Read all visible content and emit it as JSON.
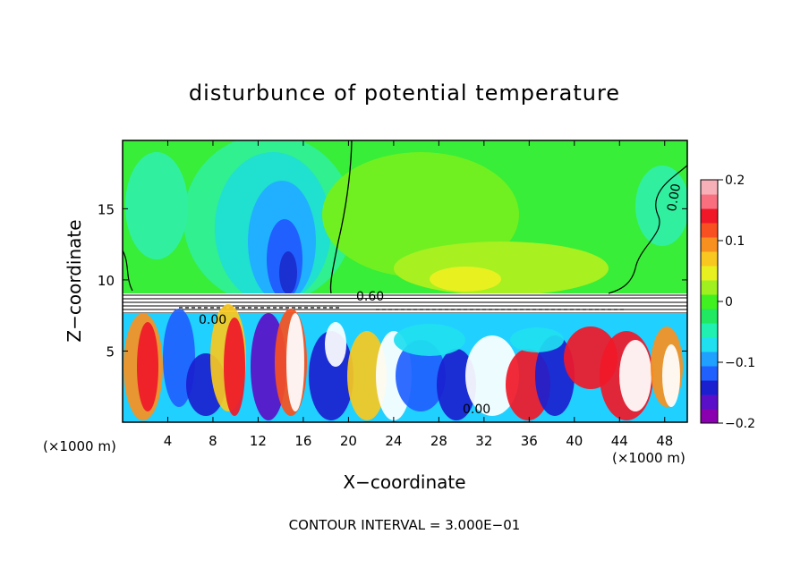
{
  "chart_data": {
    "type": "heatmap",
    "title": "disturbunce of potential temperature",
    "xlabel": "X−coordinate",
    "ylabel": "Z−coordinate",
    "x_ticks": [
      "4",
      "8",
      "12",
      "16",
      "20",
      "24",
      "28",
      "32",
      "36",
      "40",
      "44",
      "48"
    ],
    "x_tick_values": [
      4,
      8,
      12,
      16,
      20,
      24,
      28,
      32,
      36,
      40,
      44,
      48
    ],
    "y_ticks": [
      "5",
      "10",
      "15"
    ],
    "y_tick_values": [
      5,
      10,
      15
    ],
    "xlim": [
      0,
      50
    ],
    "ylim": [
      0,
      19.8
    ],
    "x_unit_left": "(×1000 m)",
    "x_unit_right": "(×1000 m)",
    "colorbar": {
      "range": [
        -0.2,
        0.2
      ],
      "ticks": [
        "0.2",
        "0.1",
        "0",
        "−0.1",
        "−0.2"
      ],
      "tick_values": [
        0.2,
        0.1,
        0,
        -0.1,
        -0.2
      ]
    },
    "contour_labels": [
      "0.60",
      "0.00",
      "0.00",
      "0.00"
    ],
    "footer": "CONTOUR INTERVAL = 3.000E−01"
  },
  "colors": {
    "palette": [
      "#8a00b0",
      "#5a10c8",
      "#1a20d0",
      "#2060ff",
      "#20a0ff",
      "#20e0f0",
      "#20f0b0",
      "#20e860",
      "#40f020",
      "#a0f020",
      "#e8f020",
      "#f8c820",
      "#f89020",
      "#f85020",
      "#f01828",
      "#f87080",
      "#f8b0b8"
    ],
    "background_green": "#38ee38"
  }
}
